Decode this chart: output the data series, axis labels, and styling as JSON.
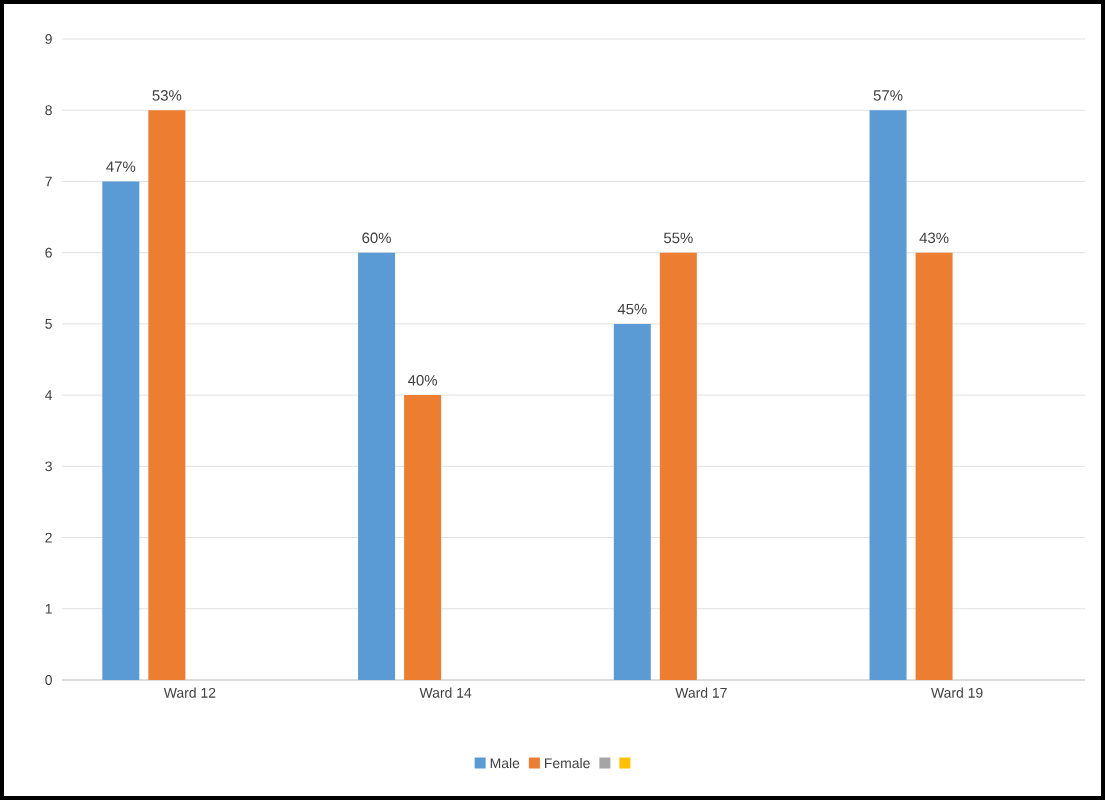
{
  "chart_data": {
    "type": "bar",
    "categories": [
      "Ward 12",
      "Ward 14",
      "Ward 17",
      "Ward 19"
    ],
    "series": [
      {
        "name": "Male",
        "color": "#5b9bd5",
        "values": [
          7,
          6,
          5,
          8
        ]
      },
      {
        "name": "Female",
        "color": "#ed7d31",
        "values": [
          8,
          4,
          6,
          6
        ]
      },
      {
        "color": "#a5a5a5",
        "values": [
          null,
          null,
          null,
          null
        ]
      },
      {
        "color": "#ffc000",
        "values": [
          null,
          null,
          null,
          null
        ]
      }
    ],
    "annotations": [
      "47%",
      "53%",
      "60%",
      "40%",
      "45%",
      "55%",
      "57%",
      "43%"
    ],
    "ylim": [
      0,
      9
    ],
    "yticks": [
      0,
      1,
      2,
      3,
      4,
      5,
      6,
      7,
      8,
      9
    ],
    "grid": "y",
    "legend": "bottom"
  }
}
